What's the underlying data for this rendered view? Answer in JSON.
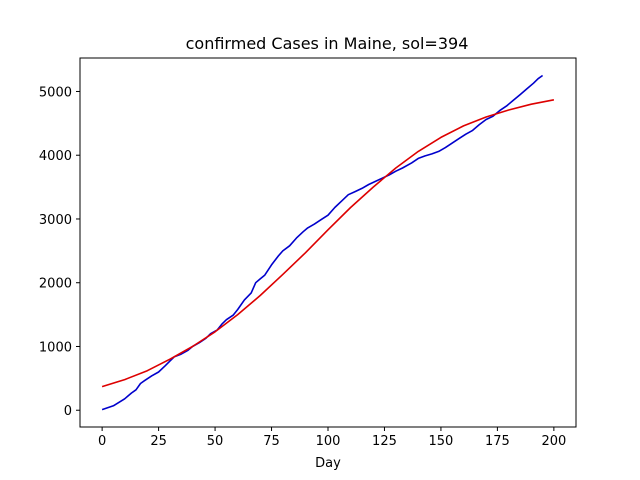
{
  "chart_data": {
    "type": "line",
    "title": "confirmed Cases in Maine, sol=394",
    "xlabel": "Day",
    "ylabel": "",
    "xlim": [
      -9.8,
      209.8
    ],
    "ylim": [
      -263,
      5525
    ],
    "xticks": [
      0,
      25,
      50,
      75,
      100,
      125,
      150,
      175,
      200
    ],
    "xtick_labels": [
      "0",
      "25",
      "50",
      "75",
      "100",
      "125",
      "150",
      "175",
      "200"
    ],
    "yticks": [
      0,
      1000,
      2000,
      3000,
      4000,
      5000
    ],
    "ytick_labels": [
      "0",
      "1000",
      "2000",
      "3000",
      "4000",
      "5000"
    ],
    "grid": false,
    "legend": "none",
    "series": [
      {
        "color": "#0000cc",
        "style": "data",
        "x": [
          0,
          5,
          10,
          13,
          15,
          17,
          19,
          22,
          25,
          28,
          30,
          32,
          35,
          38,
          40,
          43,
          46,
          48,
          51,
          53,
          55,
          58,
          60,
          63,
          66,
          68,
          70,
          72,
          75,
          78,
          80,
          83,
          86,
          89,
          91,
          94,
          97,
          100,
          103,
          106,
          109,
          112,
          115,
          118,
          121,
          124,
          127,
          130,
          133,
          137,
          140,
          143,
          146,
          149,
          152,
          155,
          158,
          161,
          164,
          167,
          170,
          173,
          176,
          179,
          182,
          185,
          188,
          191,
          193,
          195
        ],
        "y": [
          10,
          70,
          180,
          270,
          320,
          420,
          470,
          540,
          600,
          700,
          770,
          840,
          880,
          940,
          1000,
          1060,
          1130,
          1200,
          1260,
          1350,
          1420,
          1490,
          1580,
          1730,
          1840,
          2000,
          2060,
          2120,
          2280,
          2420,
          2500,
          2580,
          2700,
          2800,
          2860,
          2920,
          2990,
          3060,
          3180,
          3280,
          3380,
          3430,
          3480,
          3540,
          3590,
          3640,
          3690,
          3750,
          3800,
          3880,
          3950,
          3990,
          4020,
          4060,
          4120,
          4190,
          4260,
          4330,
          4390,
          4480,
          4560,
          4610,
          4700,
          4770,
          4860,
          4950,
          5040,
          5130,
          5200,
          5250
        ]
      },
      {
        "color": "#dd0000",
        "style": "fit",
        "x": [
          0,
          10,
          20,
          30,
          40,
          50,
          60,
          70,
          80,
          90,
          100,
          110,
          120,
          130,
          140,
          150,
          160,
          170,
          180,
          190,
          200
        ],
        "y": [
          370,
          480,
          620,
          800,
          1000,
          1230,
          1500,
          1800,
          2130,
          2470,
          2830,
          3180,
          3500,
          3800,
          4060,
          4280,
          4460,
          4600,
          4710,
          4800,
          4870
        ]
      }
    ]
  }
}
